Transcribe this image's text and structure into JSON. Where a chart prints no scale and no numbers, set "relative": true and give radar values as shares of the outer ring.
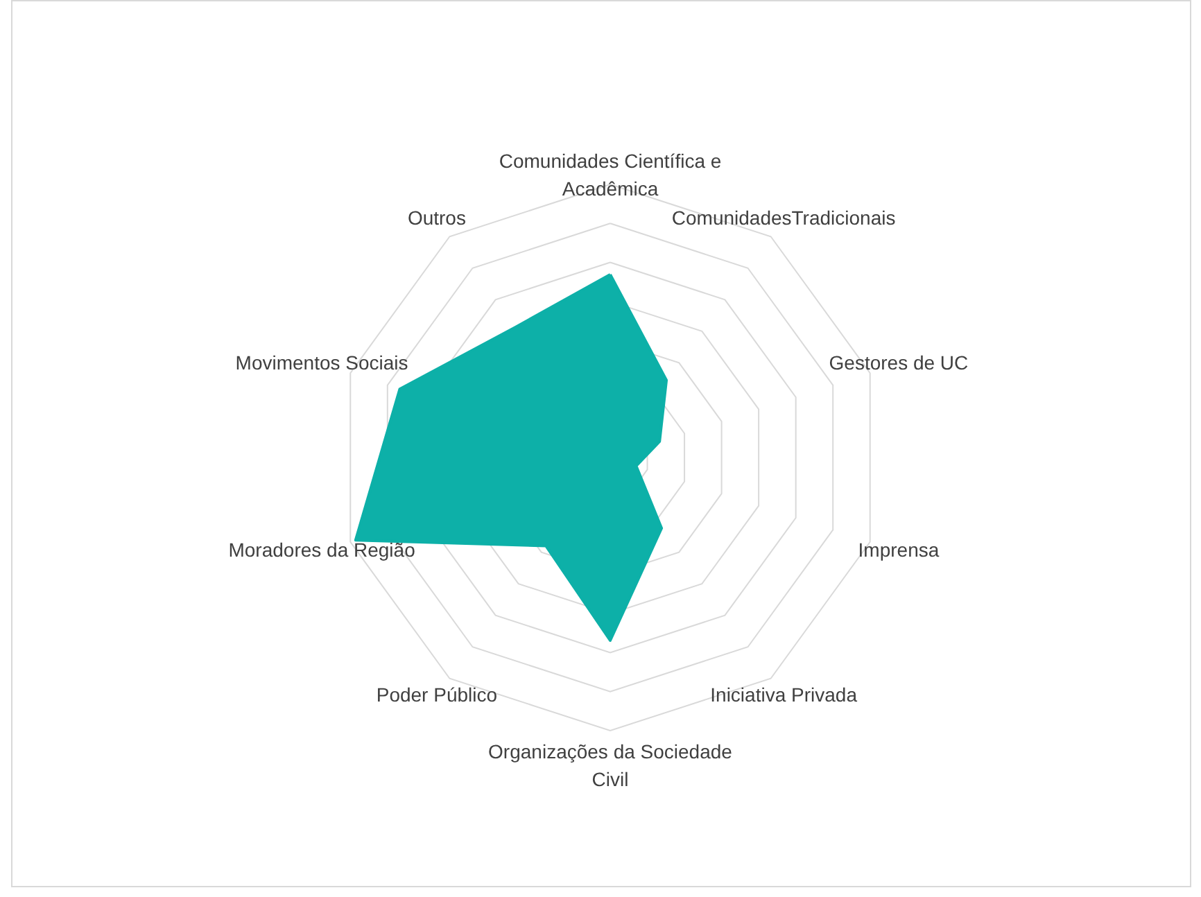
{
  "chart_data": {
    "type": "radar",
    "relative": true,
    "grid": true,
    "marker": "none",
    "categories": [
      "Comunidades Científica e Acadêmica",
      "ComunidadesTradicionais",
      "Gestores de UC",
      "Imprensa",
      "Iniciativa Privada",
      "Organizações da Sociedade Civil",
      "Poder Público",
      "Moradores da Região",
      "Movimentos Sociais",
      "Outros"
    ],
    "series": [
      {
        "color": "#0db0a8",
        "values": [
          0.67,
          0.35,
          0.19,
          0.1,
          0.32,
          0.67,
          0.4,
          0.98,
          0.81,
          0.59
        ]
      }
    ]
  }
}
